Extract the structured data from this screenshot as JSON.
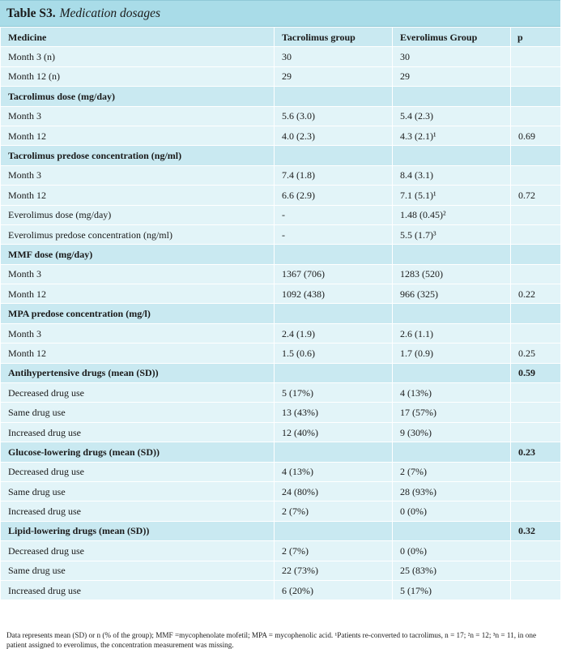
{
  "title": {
    "label": "Table S3.",
    "caption": "Medication dosages"
  },
  "columns": [
    "Medicine",
    "Tacrolimus group",
    "Everolimus Group",
    "p"
  ],
  "rows": [
    {
      "type": "normal",
      "cells": [
        "Month 3 (n)",
        "30",
        "30",
        ""
      ]
    },
    {
      "type": "normal",
      "cells": [
        "Month 12 (n)",
        "29",
        "29",
        ""
      ]
    },
    {
      "type": "section",
      "cells": [
        "Tacrolimus dose (mg/day)",
        "",
        "",
        ""
      ]
    },
    {
      "type": "normal",
      "cells": [
        "Month 3",
        "5.6 (3.0)",
        "5.4 (2.3)",
        ""
      ]
    },
    {
      "type": "normal",
      "cells": [
        "Month 12",
        "4.0 (2.3)",
        "4.3 (2.1)¹",
        "0.69"
      ]
    },
    {
      "type": "section",
      "cells": [
        "Tacrolimus predose concentration (ng/ml)",
        "",
        "",
        ""
      ]
    },
    {
      "type": "normal",
      "cells": [
        "Month 3",
        "7.4 (1.8)",
        "8.4 (3.1)",
        ""
      ]
    },
    {
      "type": "normal",
      "cells": [
        "Month 12",
        "6.6 (2.9)",
        "7.1 (5.1)¹",
        "0.72"
      ]
    },
    {
      "type": "normal",
      "cells": [
        "Everolimus dose (mg/day)",
        "-",
        "1.48 (0.45)²",
        ""
      ]
    },
    {
      "type": "normal",
      "cells": [
        "Everolimus predose concentration (ng/ml)",
        "-",
        "5.5 (1.7)³",
        ""
      ]
    },
    {
      "type": "section",
      "cells": [
        "MMF dose (mg/day)",
        "",
        "",
        ""
      ]
    },
    {
      "type": "normal",
      "cells": [
        "Month 3",
        "1367 (706)",
        "1283 (520)",
        ""
      ]
    },
    {
      "type": "normal",
      "cells": [
        "Month 12",
        "1092 (438)",
        "966 (325)",
        "0.22"
      ]
    },
    {
      "type": "section",
      "cells": [
        "MPA predose concentration (mg/l)",
        "",
        "",
        ""
      ]
    },
    {
      "type": "normal",
      "cells": [
        "Month 3",
        "2.4 (1.9)",
        "2.6 (1.1)",
        ""
      ]
    },
    {
      "type": "normal",
      "cells": [
        "Month 12",
        "1.5 (0.6)",
        "1.7 (0.9)",
        "0.25"
      ]
    },
    {
      "type": "section",
      "cells": [
        "Antihypertensive drugs (mean (SD))",
        "",
        "",
        "0.59"
      ]
    },
    {
      "type": "normal",
      "cells": [
        "Decreased drug use",
        "5 (17%)",
        "4 (13%)",
        ""
      ]
    },
    {
      "type": "normal",
      "cells": [
        "Same drug use",
        "13 (43%)",
        "17 (57%)",
        ""
      ]
    },
    {
      "type": "normal",
      "cells": [
        "Increased drug use",
        "12 (40%)",
        "9 (30%)",
        ""
      ]
    },
    {
      "type": "section",
      "cells": [
        "Glucose-lowering drugs (mean (SD))",
        "",
        "",
        "0.23"
      ]
    },
    {
      "type": "normal",
      "cells": [
        "Decreased drug use",
        "4 (13%)",
        "2 (7%)",
        ""
      ]
    },
    {
      "type": "normal",
      "cells": [
        "Same drug use",
        "24 (80%)",
        "28 (93%)",
        ""
      ]
    },
    {
      "type": "normal",
      "cells": [
        "Increased drug use",
        "2 (7%)",
        "0 (0%)",
        ""
      ]
    },
    {
      "type": "section",
      "cells": [
        "Lipid-lowering drugs (mean (SD))",
        "",
        "",
        "0.32"
      ]
    },
    {
      "type": "normal",
      "cells": [
        "Decreased drug use",
        "2 (7%)",
        "0 (0%)",
        ""
      ]
    },
    {
      "type": "normal",
      "cells": [
        "Same drug use",
        "22 (73%)",
        "25 (83%)",
        ""
      ]
    },
    {
      "type": "normal",
      "cells": [
        "Increased drug use",
        "6 (20%)",
        "5 (17%)",
        ""
      ]
    }
  ],
  "footnote": "Data represents mean (SD) or n (% of the group); MMF =mycophenolate mofetil; MPA = mycophenolic acid. ¹Patients re-converted to tacrolimus, n = 17; ²n = 12; ³n = 11, in one patient assigned to everolimus, the concentration measurement was missing.",
  "colors": {
    "header": "#a9dce8",
    "section": "#c9e9f1",
    "row": "#e2f4f8"
  }
}
